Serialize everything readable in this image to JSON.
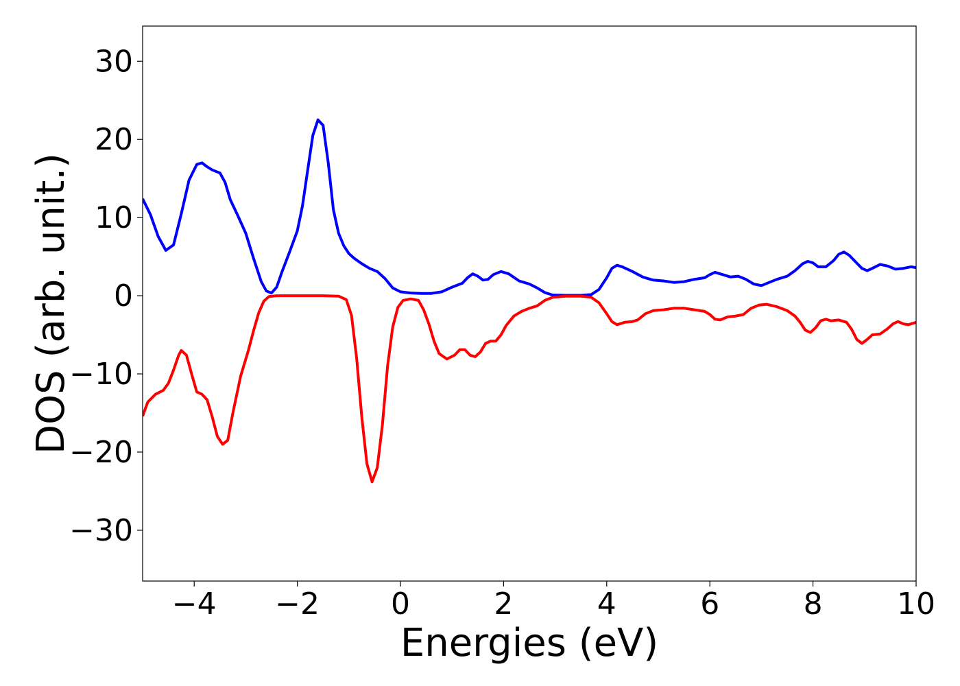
{
  "chart_data": {
    "type": "line",
    "title": "",
    "xlabel": "Energies (eV)",
    "ylabel": "DOS (arb. unit.)",
    "xlim": [
      -5,
      10
    ],
    "ylim": [
      -36.5,
      34.5
    ],
    "xticks": [
      -4,
      -2,
      0,
      2,
      4,
      6,
      8,
      10
    ],
    "xtick_labels": [
      "−4",
      "−2",
      "0",
      "2",
      "4",
      "6",
      "8",
      "10"
    ],
    "yticks": [
      30,
      20,
      10,
      0,
      -10,
      -20,
      -30
    ],
    "ytick_labels": [
      "30",
      "20",
      "10",
      "0",
      "−10",
      "−20",
      "−30"
    ],
    "grid": false,
    "legend": "none",
    "series": [
      {
        "color": "#0000ff",
        "points": [
          [
            -5.0,
            12.4
          ],
          [
            -4.85,
            10.4
          ],
          [
            -4.7,
            7.6
          ],
          [
            -4.55,
            5.8
          ],
          [
            -4.4,
            6.5
          ],
          [
            -4.25,
            10.5
          ],
          [
            -4.1,
            14.8
          ],
          [
            -3.95,
            16.8
          ],
          [
            -3.85,
            17.0
          ],
          [
            -3.75,
            16.5
          ],
          [
            -3.65,
            16.1
          ],
          [
            -3.5,
            15.7
          ],
          [
            -3.4,
            14.5
          ],
          [
            -3.3,
            12.3
          ],
          [
            -3.15,
            10.2
          ],
          [
            -3.0,
            8.0
          ],
          [
            -2.85,
            4.8
          ],
          [
            -2.7,
            1.8
          ],
          [
            -2.6,
            0.6
          ],
          [
            -2.5,
            0.35
          ],
          [
            -2.4,
            1.1
          ],
          [
            -2.3,
            3.0
          ],
          [
            -2.15,
            5.6
          ],
          [
            -2.0,
            8.3
          ],
          [
            -1.9,
            11.5
          ],
          [
            -1.8,
            16.0
          ],
          [
            -1.7,
            20.5
          ],
          [
            -1.6,
            22.5
          ],
          [
            -1.5,
            21.8
          ],
          [
            -1.4,
            17.0
          ],
          [
            -1.3,
            11.0
          ],
          [
            -1.2,
            8.0
          ],
          [
            -1.1,
            6.4
          ],
          [
            -1.0,
            5.4
          ],
          [
            -0.9,
            4.8
          ],
          [
            -0.75,
            4.1
          ],
          [
            -0.6,
            3.5
          ],
          [
            -0.45,
            3.1
          ],
          [
            -0.3,
            2.2
          ],
          [
            -0.15,
            1.0
          ],
          [
            0.0,
            0.5
          ],
          [
            0.2,
            0.35
          ],
          [
            0.4,
            0.3
          ],
          [
            0.6,
            0.3
          ],
          [
            0.8,
            0.5
          ],
          [
            1.0,
            1.1
          ],
          [
            1.2,
            1.6
          ],
          [
            1.3,
            2.3
          ],
          [
            1.4,
            2.8
          ],
          [
            1.5,
            2.5
          ],
          [
            1.6,
            2.0
          ],
          [
            1.7,
            2.1
          ],
          [
            1.8,
            2.7
          ],
          [
            1.95,
            3.1
          ],
          [
            2.1,
            2.8
          ],
          [
            2.3,
            1.9
          ],
          [
            2.5,
            1.5
          ],
          [
            2.65,
            1.0
          ],
          [
            2.8,
            0.4
          ],
          [
            2.95,
            0.1
          ],
          [
            3.2,
            0.05
          ],
          [
            3.5,
            0.05
          ],
          [
            3.7,
            0.15
          ],
          [
            3.85,
            0.8
          ],
          [
            4.0,
            2.3
          ],
          [
            4.1,
            3.5
          ],
          [
            4.2,
            3.9
          ],
          [
            4.3,
            3.7
          ],
          [
            4.5,
            3.1
          ],
          [
            4.7,
            2.4
          ],
          [
            4.9,
            2.0
          ],
          [
            5.1,
            1.9
          ],
          [
            5.3,
            1.7
          ],
          [
            5.5,
            1.8
          ],
          [
            5.7,
            2.1
          ],
          [
            5.9,
            2.3
          ],
          [
            6.0,
            2.7
          ],
          [
            6.1,
            3.0
          ],
          [
            6.25,
            2.7
          ],
          [
            6.4,
            2.4
          ],
          [
            6.55,
            2.5
          ],
          [
            6.7,
            2.1
          ],
          [
            6.85,
            1.5
          ],
          [
            7.0,
            1.3
          ],
          [
            7.15,
            1.7
          ],
          [
            7.3,
            2.1
          ],
          [
            7.5,
            2.5
          ],
          [
            7.65,
            3.2
          ],
          [
            7.8,
            4.1
          ],
          [
            7.9,
            4.4
          ],
          [
            8.0,
            4.2
          ],
          [
            8.1,
            3.7
          ],
          [
            8.25,
            3.7
          ],
          [
            8.4,
            4.5
          ],
          [
            8.5,
            5.3
          ],
          [
            8.6,
            5.6
          ],
          [
            8.7,
            5.2
          ],
          [
            8.8,
            4.5
          ],
          [
            8.95,
            3.5
          ],
          [
            9.05,
            3.2
          ],
          [
            9.15,
            3.5
          ],
          [
            9.3,
            4.0
          ],
          [
            9.45,
            3.8
          ],
          [
            9.6,
            3.4
          ],
          [
            9.75,
            3.5
          ],
          [
            9.9,
            3.7
          ],
          [
            10.0,
            3.6
          ]
        ]
      },
      {
        "color": "#ff0000",
        "points": [
          [
            -5.0,
            -15.4
          ],
          [
            -4.9,
            -13.6
          ],
          [
            -4.75,
            -12.6
          ],
          [
            -4.6,
            -12.1
          ],
          [
            -4.5,
            -11.2
          ],
          [
            -4.4,
            -9.5
          ],
          [
            -4.3,
            -7.6
          ],
          [
            -4.25,
            -7.0
          ],
          [
            -4.15,
            -7.6
          ],
          [
            -4.05,
            -10.0
          ],
          [
            -3.95,
            -12.3
          ],
          [
            -3.85,
            -12.6
          ],
          [
            -3.75,
            -13.3
          ],
          [
            -3.65,
            -15.5
          ],
          [
            -3.55,
            -18.0
          ],
          [
            -3.45,
            -19.0
          ],
          [
            -3.35,
            -18.5
          ],
          [
            -3.25,
            -15.0
          ],
          [
            -3.1,
            -10.3
          ],
          [
            -2.95,
            -7.0
          ],
          [
            -2.85,
            -4.5
          ],
          [
            -2.75,
            -2.2
          ],
          [
            -2.65,
            -0.7
          ],
          [
            -2.55,
            -0.1
          ],
          [
            -2.4,
            0.0
          ],
          [
            -2.0,
            0.0
          ],
          [
            -1.5,
            0.0
          ],
          [
            -1.2,
            -0.05
          ],
          [
            -1.05,
            -0.5
          ],
          [
            -0.95,
            -2.5
          ],
          [
            -0.85,
            -8.0
          ],
          [
            -0.75,
            -15.5
          ],
          [
            -0.65,
            -21.5
          ],
          [
            -0.55,
            -23.8
          ],
          [
            -0.45,
            -22.0
          ],
          [
            -0.35,
            -16.5
          ],
          [
            -0.25,
            -9.0
          ],
          [
            -0.15,
            -4.0
          ],
          [
            -0.05,
            -1.5
          ],
          [
            0.05,
            -0.6
          ],
          [
            0.2,
            -0.4
          ],
          [
            0.35,
            -0.6
          ],
          [
            0.45,
            -1.8
          ],
          [
            0.55,
            -3.6
          ],
          [
            0.65,
            -5.8
          ],
          [
            0.75,
            -7.4
          ],
          [
            0.9,
            -8.1
          ],
          [
            1.05,
            -7.6
          ],
          [
            1.15,
            -6.9
          ],
          [
            1.25,
            -6.9
          ],
          [
            1.35,
            -7.6
          ],
          [
            1.45,
            -7.8
          ],
          [
            1.55,
            -7.2
          ],
          [
            1.65,
            -6.1
          ],
          [
            1.75,
            -5.8
          ],
          [
            1.85,
            -5.8
          ],
          [
            1.95,
            -5.0
          ],
          [
            2.05,
            -3.8
          ],
          [
            2.2,
            -2.6
          ],
          [
            2.35,
            -2.0
          ],
          [
            2.5,
            -1.6
          ],
          [
            2.65,
            -1.3
          ],
          [
            2.8,
            -0.6
          ],
          [
            2.95,
            -0.2
          ],
          [
            3.2,
            -0.05
          ],
          [
            3.5,
            -0.05
          ],
          [
            3.7,
            -0.2
          ],
          [
            3.85,
            -0.9
          ],
          [
            4.0,
            -2.3
          ],
          [
            4.1,
            -3.3
          ],
          [
            4.2,
            -3.7
          ],
          [
            4.35,
            -3.4
          ],
          [
            4.5,
            -3.3
          ],
          [
            4.6,
            -3.1
          ],
          [
            4.75,
            -2.3
          ],
          [
            4.9,
            -1.9
          ],
          [
            5.1,
            -1.8
          ],
          [
            5.3,
            -1.6
          ],
          [
            5.5,
            -1.6
          ],
          [
            5.7,
            -1.8
          ],
          [
            5.9,
            -2.0
          ],
          [
            6.0,
            -2.4
          ],
          [
            6.1,
            -3.0
          ],
          [
            6.2,
            -3.1
          ],
          [
            6.35,
            -2.7
          ],
          [
            6.5,
            -2.6
          ],
          [
            6.65,
            -2.4
          ],
          [
            6.8,
            -1.6
          ],
          [
            6.95,
            -1.2
          ],
          [
            7.1,
            -1.1
          ],
          [
            7.3,
            -1.4
          ],
          [
            7.5,
            -1.9
          ],
          [
            7.65,
            -2.6
          ],
          [
            7.75,
            -3.4
          ],
          [
            7.85,
            -4.4
          ],
          [
            7.95,
            -4.7
          ],
          [
            8.05,
            -4.1
          ],
          [
            8.15,
            -3.2
          ],
          [
            8.25,
            -3.0
          ],
          [
            8.35,
            -3.2
          ],
          [
            8.5,
            -3.1
          ],
          [
            8.65,
            -3.4
          ],
          [
            8.75,
            -4.3
          ],
          [
            8.85,
            -5.6
          ],
          [
            8.95,
            -6.1
          ],
          [
            9.05,
            -5.6
          ],
          [
            9.15,
            -5.0
          ],
          [
            9.3,
            -4.9
          ],
          [
            9.45,
            -4.2
          ],
          [
            9.55,
            -3.6
          ],
          [
            9.65,
            -3.3
          ],
          [
            9.75,
            -3.6
          ],
          [
            9.85,
            -3.7
          ],
          [
            10.0,
            -3.4
          ]
        ]
      }
    ]
  }
}
